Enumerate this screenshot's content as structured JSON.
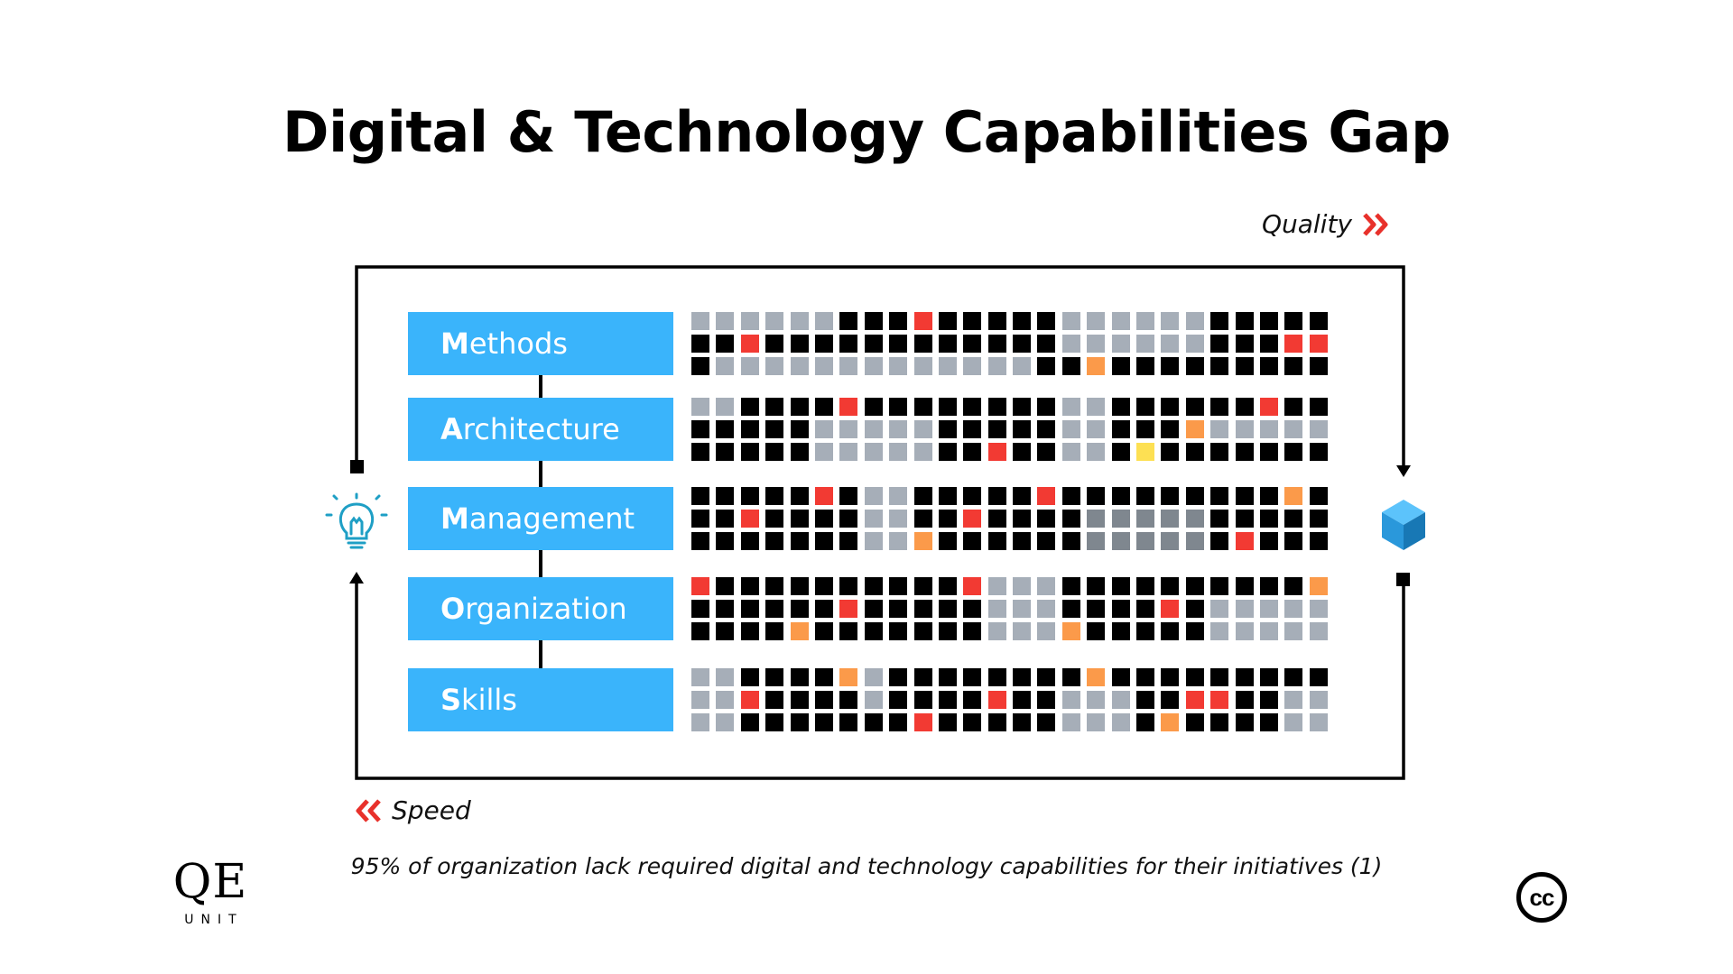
{
  "title": "Digital & Technology Capabilities Gap",
  "axis": {
    "quality": "Quality",
    "speed": "Speed"
  },
  "icons": {
    "left": "lightbulb-icon",
    "right": "cube-icon",
    "quality_arrows": "double-chevron-right-icon",
    "speed_arrows": "double-chevron-left-icon"
  },
  "colors": {
    "category_bg": "#3ab4fb",
    "accent_red": "#e8312b",
    "cell_black": "#000000",
    "cell_gray": "#a6aeb8",
    "cell_darkgray": "#7f878f",
    "cell_red": "#f23a33",
    "cell_orange": "#fb9a4a",
    "cell_yellow": "#fde053"
  },
  "categories": [
    {
      "initial": "M",
      "rest": "ethods",
      "rows": [
        "ggggggkkkrkkkkkggggggkkkkk",
        "kkrkkkkkkkkkkkkggggggkkkrr",
        "kgggggggggggggkkokkkkkkkkk"
      ]
    },
    {
      "initial": "A",
      "rest": "rchitecture",
      "rows": [
        "ggkkkkrkkkkkkkkggkkkkkkrkk",
        "kkkkkgggggkkkkkggkkkoggggg",
        "kkkkkgggggkkrkkggkykkkkkkk"
      ]
    },
    {
      "initial": "M",
      "rest": "anagement",
      "rows": [
        "kkkkkrkggkkkkkrkkkkkkkkkok",
        "kkrkkkkggkkrkkkkdddddkkkkk",
        "kkkkkkkggokkkkkkdddddkrkkk"
      ]
    },
    {
      "initial": "O",
      "rest": "rganization",
      "rows": [
        "rkkkkkkkkkkrgggkkkkkkkkkko",
        "kkkkkkrkkkkkgggkkkkrkggggg",
        "kkkkokkkkkkkgggokkkkkggggg"
      ]
    },
    {
      "initial": "S",
      "rest": "kills",
      "rows": [
        "ggkkkkogkkkkkkkkokkkkkkkkk",
        "ggrkkkkgkkkkrkkgggkkrrkkgg",
        "ggkkkkkkkrkkkkkgggkokkkkgg"
      ]
    }
  ],
  "footnote": "95% of organization lack required digital and technology capabilities for their initiatives (1)",
  "logo": {
    "main": "QE",
    "sub": "UNIT"
  },
  "license_badge": "cc"
}
